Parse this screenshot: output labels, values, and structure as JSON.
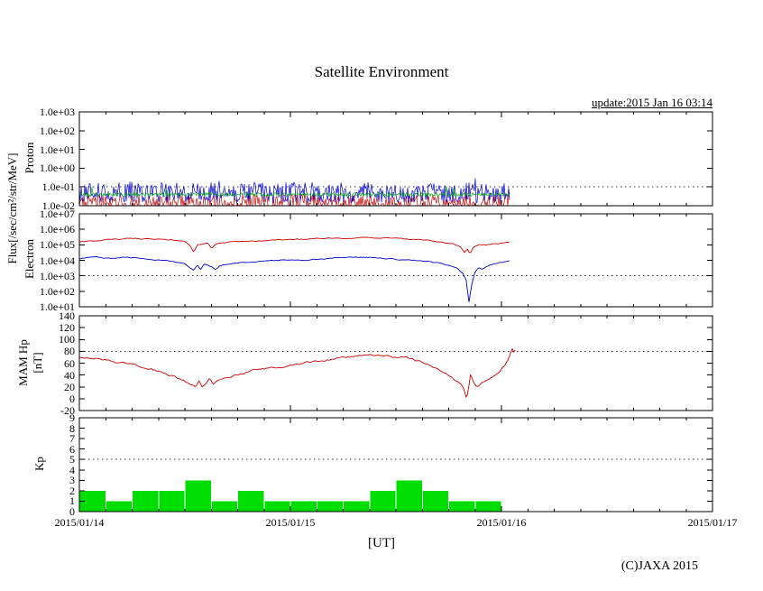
{
  "title": "Satellite Environment",
  "update_text": "update:2015 Jan 16 03:14",
  "xlabel": "[UT]",
  "copyright": "(C)JAXA 2015",
  "flux_axis_label": "Flux[/sec/cm²/str/MeV]",
  "x_axis": {
    "tick_labels": [
      "2015/01/14",
      "2015/01/15",
      "2015/01/16",
      "2015/01/17"
    ],
    "hours_total": 72,
    "major_tick_hours": 24,
    "minor_tick_hours": 3
  },
  "chart_data": [
    {
      "id": "proton",
      "type": "noise-line",
      "ylabel": "Proton",
      "yscale": "log",
      "ylim": [
        0.01,
        1000
      ],
      "ytick_labels": [
        "1.0e+03",
        "1.0e+02",
        "1.0e+01",
        "1.0e+00",
        "1.0e-01",
        "1.0e-02"
      ],
      "gridline_value": 0.1,
      "data_end_hour": 49,
      "series": [
        {
          "name": "proton-red",
          "color": "#cc0000",
          "log10_base": -1.85,
          "log10_jitter": 0.45
        },
        {
          "name": "proton-blue",
          "color": "#0000cc",
          "log10_base": -1.3,
          "log10_jitter": 0.55
        },
        {
          "name": "proton-green",
          "color": "#00aa00",
          "log10_base": -1.4,
          "log10_jitter": 0.1
        }
      ]
    },
    {
      "id": "electron",
      "type": "line",
      "ylabel": "Electron",
      "yscale": "log",
      "ylim": [
        10,
        10000000
      ],
      "ytick_labels": [
        "1.0e+07",
        "1.0e+06",
        "1.0e+05",
        "1.0e+04",
        "1.0e+03",
        "1.0e+02",
        "1.0e+01"
      ],
      "gridline_value": 1000,
      "series": [
        {
          "name": "electron-red",
          "color": "#cc0000",
          "points": [
            [
              0,
              150000
            ],
            [
              2,
              190000
            ],
            [
              4,
              230000
            ],
            [
              6,
              250000
            ],
            [
              8,
              240000
            ],
            [
              10,
              210000
            ],
            [
              12,
              160000
            ],
            [
              12.6,
              80000
            ],
            [
              13,
              35000
            ],
            [
              13.4,
              100000
            ],
            [
              14,
              120000
            ],
            [
              14.6,
              130000
            ],
            [
              15,
              60000
            ],
            [
              15.5,
              110000
            ],
            [
              16,
              130000
            ],
            [
              18,
              160000
            ],
            [
              20,
              180000
            ],
            [
              22,
              200000
            ],
            [
              24,
              220000
            ],
            [
              26,
              240000
            ],
            [
              28,
              260000
            ],
            [
              30,
              270000
            ],
            [
              32,
              280000
            ],
            [
              34,
              270000
            ],
            [
              36,
              250000
            ],
            [
              38,
              220000
            ],
            [
              40,
              180000
            ],
            [
              41.5,
              150000
            ],
            [
              42.5,
              120000
            ],
            [
              43.3,
              80000
            ],
            [
              43.8,
              30000
            ],
            [
              44.1,
              60000
            ],
            [
              44.4,
              25000
            ],
            [
              44.8,
              70000
            ],
            [
              45.5,
              100000
            ],
            [
              46.5,
              110000
            ],
            [
              47.5,
              120000
            ],
            [
              48.5,
              140000
            ],
            [
              49,
              150000
            ]
          ]
        },
        {
          "name": "electron-blue",
          "color": "#0000cc",
          "points": [
            [
              0,
              13000
            ],
            [
              1,
              16000
            ],
            [
              2,
              18000
            ],
            [
              3,
              15000
            ],
            [
              4,
              14000
            ],
            [
              5,
              16000
            ],
            [
              6,
              15000
            ],
            [
              7,
              13000
            ],
            [
              8,
              12000
            ],
            [
              9,
              10000
            ],
            [
              10,
              9000
            ],
            [
              11,
              7500
            ],
            [
              12,
              6000
            ],
            [
              12.6,
              3000
            ],
            [
              13,
              2200
            ],
            [
              13.4,
              4500
            ],
            [
              13.8,
              2500
            ],
            [
              14.2,
              5500
            ],
            [
              15,
              4000
            ],
            [
              15.5,
              2600
            ],
            [
              16,
              4800
            ],
            [
              17,
              6000
            ],
            [
              18,
              6800
            ],
            [
              19,
              7500
            ],
            [
              20,
              8000
            ],
            [
              21,
              8500
            ],
            [
              22,
              9000
            ],
            [
              23,
              10000
            ],
            [
              24,
              11000
            ],
            [
              25,
              10500
            ],
            [
              26,
              10000
            ],
            [
              27,
              11500
            ],
            [
              28,
              13000
            ],
            [
              29,
              14000
            ],
            [
              30,
              15000
            ],
            [
              31,
              15500
            ],
            [
              32,
              16000
            ],
            [
              33,
              15000
            ],
            [
              34,
              14000
            ],
            [
              35,
              13000
            ],
            [
              36,
              12000
            ],
            [
              37,
              11000
            ],
            [
              38,
              10000
            ],
            [
              39,
              9000
            ],
            [
              40,
              8000
            ],
            [
              41,
              6500
            ],
            [
              42,
              5000
            ],
            [
              43,
              3000
            ],
            [
              43.6,
              1500
            ],
            [
              44,
              500
            ],
            [
              44.3,
              18
            ],
            [
              44.6,
              250
            ],
            [
              45,
              1800
            ],
            [
              45.4,
              3500
            ],
            [
              45.8,
              2800
            ],
            [
              46.5,
              4500
            ],
            [
              47,
              5500
            ],
            [
              48,
              7500
            ],
            [
              49,
              9000
            ]
          ]
        }
      ]
    },
    {
      "id": "mam-hp",
      "type": "line",
      "ylabel": "MAM Hp\n[nT]",
      "yscale": "linear",
      "ylim": [
        -20,
        140
      ],
      "ytick_labels": [
        "140",
        "120",
        "100",
        "80",
        "60",
        "40",
        "20",
        "0",
        "-20"
      ],
      "gridline_value": 80,
      "series": [
        {
          "name": "hp-red",
          "color": "#cc0000",
          "points": [
            [
              0,
              70
            ],
            [
              1,
              70
            ],
            [
              2,
              68
            ],
            [
              3,
              66
            ],
            [
              4,
              63
            ],
            [
              5,
              61
            ],
            [
              6,
              59
            ],
            [
              7,
              55
            ],
            [
              8,
              51
            ],
            [
              9,
              46
            ],
            [
              10,
              41
            ],
            [
              11,
              36
            ],
            [
              12,
              30
            ],
            [
              12.8,
              24
            ],
            [
              13.2,
              20
            ],
            [
              13.6,
              32
            ],
            [
              14,
              18
            ],
            [
              14.4,
              26
            ],
            [
              14.8,
              36
            ],
            [
              15.2,
              24
            ],
            [
              15.6,
              30
            ],
            [
              16,
              32
            ],
            [
              17,
              36
            ],
            [
              18,
              40
            ],
            [
              19,
              44
            ],
            [
              20,
              48
            ],
            [
              21,
              50
            ],
            [
              22,
              52
            ],
            [
              23,
              54
            ],
            [
              24,
              56
            ],
            [
              25,
              58
            ],
            [
              26,
              61
            ],
            [
              27,
              63
            ],
            [
              28,
              65
            ],
            [
              29,
              67
            ],
            [
              30,
              69
            ],
            [
              31,
              71
            ],
            [
              32,
              73
            ],
            [
              33,
              75
            ],
            [
              34,
              74
            ],
            [
              35,
              72
            ],
            [
              36,
              69
            ],
            [
              37,
              70
            ],
            [
              38,
              66
            ],
            [
              39,
              61
            ],
            [
              40,
              56
            ],
            [
              40.8,
              50
            ],
            [
              41.5,
              44
            ],
            [
              42.2,
              37
            ],
            [
              42.8,
              31
            ],
            [
              43.3,
              26
            ],
            [
              43.7,
              17
            ],
            [
              44,
              3
            ],
            [
              44.2,
              12
            ],
            [
              44.5,
              44
            ],
            [
              44.8,
              28
            ],
            [
              45.2,
              21
            ],
            [
              45.6,
              25
            ],
            [
              46,
              29
            ],
            [
              46.5,
              33
            ],
            [
              47,
              38
            ],
            [
              47.5,
              43
            ],
            [
              48,
              50
            ],
            [
              48.4,
              58
            ],
            [
              48.8,
              68
            ],
            [
              49,
              75
            ],
            [
              49.2,
              86
            ],
            [
              49.4,
              80
            ],
            [
              49.6,
              84
            ]
          ]
        }
      ]
    },
    {
      "id": "kp",
      "type": "bar",
      "ylabel": "Kp",
      "yscale": "linear",
      "ylim": [
        0,
        9
      ],
      "ytick_labels": [
        "9",
        "8",
        "7",
        "6",
        "5",
        "4",
        "3",
        "2",
        "1",
        "0"
      ],
      "gridline_value": 5,
      "bar_width_hours": 3,
      "color": "#00dd00",
      "values": [
        2,
        1,
        2,
        2,
        3,
        1,
        2,
        1,
        1,
        1,
        1,
        2,
        3,
        2,
        1,
        1
      ]
    }
  ]
}
